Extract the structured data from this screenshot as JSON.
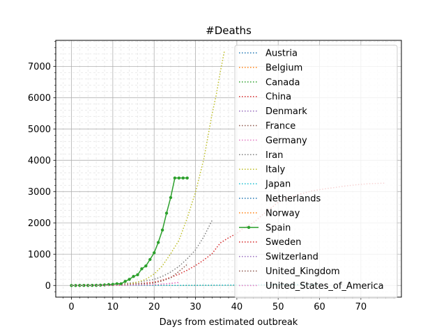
{
  "chart_data": {
    "type": "line",
    "title": "#Deaths",
    "xlabel": "Days from estimated outbreak",
    "ylabel": "",
    "xlim": [
      -3.8,
      79.8
    ],
    "ylim": [
      -372,
      7830
    ],
    "xticks": [
      0,
      10,
      20,
      30,
      40,
      50,
      60,
      70
    ],
    "yticks": [
      0,
      1000,
      2000,
      3000,
      4000,
      5000,
      6000,
      7000
    ],
    "grid": true,
    "minor_grid": true,
    "legend_position": "top-right",
    "series": [
      {
        "name": "Austria",
        "color": "#1f77b4",
        "style": "dotted",
        "x": [
          0,
          2,
          4,
          6,
          8,
          10,
          12,
          14,
          16,
          18
        ],
        "y": [
          0,
          0,
          0,
          0,
          0,
          1,
          1,
          2,
          3,
          4
        ]
      },
      {
        "name": "Belgium",
        "color": "#ff7f0e",
        "style": "dotted",
        "x": [
          0,
          2,
          4,
          6,
          8,
          10,
          12,
          14,
          16,
          18,
          20
        ],
        "y": [
          0,
          0,
          0,
          0,
          1,
          2,
          3,
          5,
          10,
          14,
          21
        ]
      },
      {
        "name": "Canada",
        "color": "#2ca02c",
        "style": "dotted",
        "x": [
          0,
          4,
          8,
          12,
          16,
          20,
          24,
          28,
          32,
          36,
          40,
          44,
          48,
          52,
          56,
          60
        ],
        "y": [
          0,
          0,
          0,
          0,
          1,
          1,
          1,
          2,
          5,
          8,
          10,
          12,
          13,
          15,
          19,
          24
        ]
      },
      {
        "name": "China",
        "color": "#d62728",
        "style": "dotted",
        "x": [
          0,
          4,
          8,
          12,
          16,
          20,
          22,
          24,
          26,
          28,
          30,
          32,
          34,
          36,
          38,
          40,
          42,
          44,
          46,
          48,
          50,
          52,
          54,
          56,
          58,
          60,
          62,
          64,
          66,
          68,
          70,
          72,
          74,
          76
        ],
        "y": [
          0,
          0,
          0,
          17,
          56,
          106,
          170,
          259,
          361,
          490,
          636,
          813,
          1017,
          1357,
          1523,
          1665,
          1868,
          2004,
          2236,
          2442,
          2663,
          2788,
          2870,
          2943,
          3015,
          3062,
          3100,
          3136,
          3173,
          3204,
          3231,
          3250,
          3261,
          3270
        ]
      },
      {
        "name": "Denmark",
        "color": "#9467bd",
        "style": "dotted",
        "x": [
          0,
          2,
          4,
          6,
          8,
          10,
          12,
          14,
          16
        ],
        "y": [
          0,
          0,
          0,
          0,
          0,
          1,
          2,
          3,
          4
        ]
      },
      {
        "name": "France",
        "color": "#8c564b",
        "style": "dotted",
        "x": [
          0,
          2,
          4,
          6,
          8,
          10,
          12,
          14,
          16,
          18,
          20,
          22,
          24,
          26,
          27,
          28
        ],
        "y": [
          0,
          0,
          1,
          2,
          3,
          7,
          9,
          16,
          25,
          48,
          79,
          148,
          243,
          450,
          562,
          674
        ]
      },
      {
        "name": "Germany",
        "color": "#e377c2",
        "style": "dotted",
        "x": [
          0,
          2,
          4,
          6,
          8,
          10,
          12,
          14,
          16,
          18,
          20,
          22,
          24,
          26
        ],
        "y": [
          0,
          0,
          0,
          0,
          1,
          2,
          3,
          6,
          9,
          13,
          24,
          44,
          68,
          94
        ]
      },
      {
        "name": "Iran",
        "color": "#7f7f7f",
        "style": "dotted",
        "x": [
          0,
          2,
          4,
          6,
          8,
          10,
          12,
          14,
          16,
          18,
          20,
          22,
          24,
          26,
          28,
          30,
          32,
          34
        ],
        "y": [
          2,
          4,
          8,
          15,
          22,
          34,
          54,
          77,
          107,
          145,
          194,
          291,
          429,
          611,
          853,
          1135,
          1556,
          2077
        ]
      },
      {
        "name": "Italy",
        "color": "#bcbd22",
        "style": "dotted",
        "x": [
          0,
          2,
          4,
          6,
          8,
          10,
          12,
          14,
          16,
          18,
          20,
          22,
          24,
          26,
          28,
          30,
          32,
          34,
          35,
          36,
          37
        ],
        "y": [
          0,
          0,
          3,
          7,
          12,
          17,
          29,
          52,
          107,
          197,
          366,
          631,
          1016,
          1441,
          2158,
          2978,
          4032,
          5476,
          6077,
          6820,
          7500
        ]
      },
      {
        "name": "Japan",
        "color": "#17becf",
        "style": "dotted",
        "x": [
          0,
          5,
          10,
          15,
          20,
          25,
          30,
          35,
          40,
          45,
          50,
          55,
          60
        ],
        "y": [
          0,
          0,
          1,
          1,
          2,
          3,
          6,
          10,
          15,
          21,
          28,
          33,
          38
        ]
      },
      {
        "name": "Netherlands",
        "color": "#1f77b4",
        "style": "dotted",
        "x": [
          0,
          2,
          4,
          6,
          8,
          10,
          12,
          14,
          16,
          18
        ],
        "y": [
          0,
          1,
          1,
          3,
          4,
          5,
          10,
          12,
          20,
          24
        ]
      },
      {
        "name": "Norway",
        "color": "#ff7f0e",
        "style": "dotted",
        "x": [
          0,
          2,
          4,
          6,
          8,
          10,
          12
        ],
        "y": [
          0,
          0,
          0,
          1,
          1,
          2,
          3
        ]
      },
      {
        "name": "Spain",
        "color": "#2ca02c",
        "style": "solid-marker",
        "x": [
          0,
          1,
          2,
          3,
          4,
          5,
          6,
          7,
          8,
          9,
          10,
          11,
          12,
          13,
          14,
          15,
          16,
          17,
          18,
          19,
          20,
          21,
          22,
          23,
          24,
          25,
          26,
          27,
          28
        ],
        "y": [
          0,
          0,
          1,
          1,
          2,
          3,
          5,
          10,
          17,
          28,
          35,
          54,
          55,
          133,
          195,
          289,
          342,
          533,
          623,
          830,
          1043,
          1375,
          1772,
          2311,
          2808,
          3434,
          3434,
          3434,
          3434
        ]
      },
      {
        "name": "Sweden",
        "color": "#d62728",
        "style": "dotted",
        "x": [
          0,
          2,
          4,
          6,
          8,
          10,
          12,
          14
        ],
        "y": [
          0,
          0,
          1,
          1,
          2,
          3,
          6,
          10
        ]
      },
      {
        "name": "Switzerland",
        "color": "#9467bd",
        "style": "dotted",
        "x": [
          0,
          2,
          4,
          6,
          8,
          10,
          12,
          14,
          16
        ],
        "y": [
          0,
          1,
          2,
          4,
          7,
          11,
          14,
          27,
          33
        ]
      },
      {
        "name": "United_Kingdom",
        "color": "#8c564b",
        "style": "dotted",
        "x": [
          0,
          2,
          4,
          6,
          8,
          10,
          12,
          14,
          16,
          18
        ],
        "y": [
          0,
          1,
          2,
          3,
          8,
          10,
          21,
          35,
          55,
          71
        ]
      },
      {
        "name": "United_States_of_America",
        "color": "#e377c2",
        "style": "dotted",
        "x": [
          0,
          2,
          4,
          6,
          8,
          10,
          12,
          14,
          16,
          18,
          20,
          22,
          24,
          26
        ],
        "y": [
          0,
          0,
          1,
          2,
          4,
          6,
          9,
          11,
          14,
          19,
          26,
          41,
          60,
          100
        ]
      }
    ]
  }
}
